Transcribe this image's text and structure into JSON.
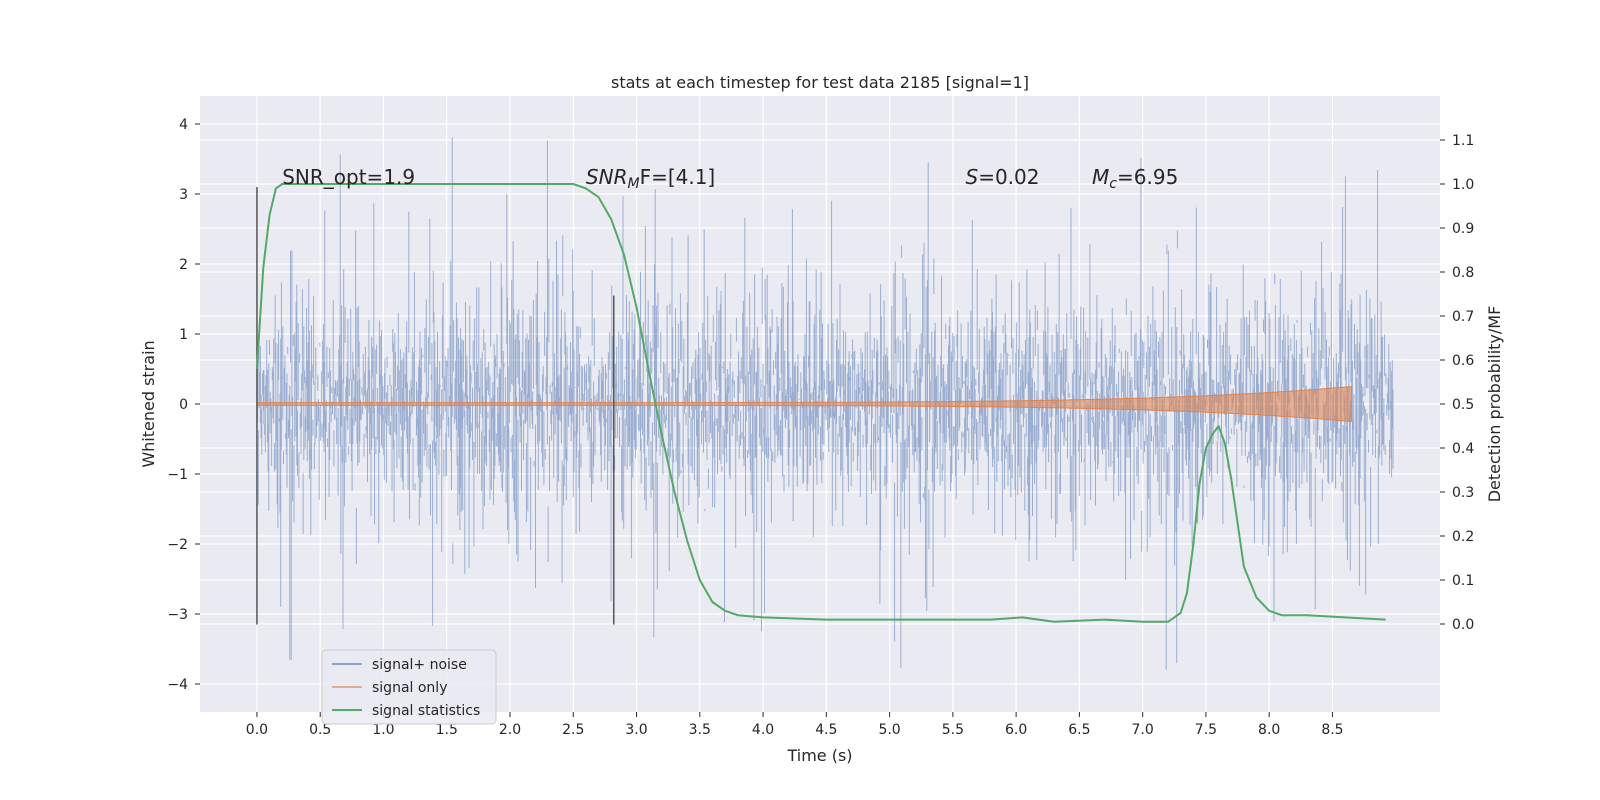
{
  "chart_data": {
    "type": "line",
    "title": "stats at each timestep for test data 2185 [signal=1]",
    "xlabel": "Time (s)",
    "ylabel_left": "Whitened strain",
    "ylabel_right": "Detection probability/MF",
    "xlim": [
      -0.45,
      9.35
    ],
    "ylim_left": [
      -4.4,
      4.4
    ],
    "ylim_right": [
      -0.2,
      1.2
    ],
    "x_ticks": [
      "0.0",
      "0.5",
      "1.0",
      "1.5",
      "2.0",
      "2.5",
      "3.0",
      "3.5",
      "4.0",
      "4.5",
      "5.0",
      "5.5",
      "6.0",
      "6.5",
      "7.0",
      "7.5",
      "8.0",
      "8.5"
    ],
    "y_left_ticks": [
      "4",
      "3",
      "2",
      "1",
      "0",
      "−1",
      "−2",
      "−3",
      "−4"
    ],
    "y_right_ticks": [
      "1.1",
      "1.0",
      "0.9",
      "0.8",
      "0.7",
      "0.6",
      "0.5",
      "0.4",
      "0.3",
      "0.2",
      "0.1",
      "0.0"
    ],
    "grid": true,
    "legend_position": "lower-left",
    "annotations": [
      {
        "text": "SNR_opt=1.9",
        "x": 0.2
      },
      {
        "text_parts": [
          "SNR",
          "M",
          "F=[4.1]"
        ],
        "x": 2.6
      },
      {
        "text_parts": [
          "S",
          "=0.02"
        ],
        "x": 5.6
      },
      {
        "text_parts": [
          "M",
          "c",
          "=6.95"
        ],
        "x": 6.6
      }
    ],
    "vlines": [
      {
        "x": 0.0,
        "y_range": [
          -3.15,
          3.1
        ]
      },
      {
        "x": 2.82,
        "y_range": [
          -3.15,
          1.55
        ]
      }
    ],
    "series": [
      {
        "name": "signal+ noise",
        "color": "#4c72b0",
        "x_range": [
          0.0,
          8.98
        ],
        "amplitude_envelope": {
          "typical_abs": 2.0,
          "max": 3.97,
          "min": -4.02
        }
      },
      {
        "name": "signal only",
        "color": "#dd8452",
        "x_range": [
          0.0,
          8.65
        ],
        "amplitude_envelope": {
          "start": 0.02,
          "end": 0.25
        }
      },
      {
        "name": "signal statistics",
        "color": "#55a868",
        "axis": "right",
        "x": [
          0.0,
          0.05,
          0.1,
          0.15,
          0.2,
          0.3,
          0.5,
          1.0,
          1.5,
          2.0,
          2.3,
          2.5,
          2.6,
          2.7,
          2.8,
          2.9,
          3.0,
          3.1,
          3.2,
          3.3,
          3.4,
          3.5,
          3.6,
          3.7,
          3.8,
          4.0,
          4.5,
          5.0,
          5.5,
          5.8,
          6.05,
          6.3,
          6.7,
          7.0,
          7.2,
          7.3,
          7.35,
          7.4,
          7.45,
          7.5,
          7.55,
          7.6,
          7.65,
          7.7,
          7.8,
          7.9,
          8.0,
          8.1,
          8.3,
          8.6,
          8.92
        ],
        "values": [
          0.58,
          0.81,
          0.93,
          0.99,
          1.0,
          1.0,
          1.0,
          1.0,
          1.0,
          1.0,
          1.0,
          1.0,
          0.99,
          0.97,
          0.92,
          0.84,
          0.72,
          0.57,
          0.43,
          0.3,
          0.19,
          0.1,
          0.05,
          0.03,
          0.02,
          0.015,
          0.01,
          0.01,
          0.01,
          0.01,
          0.015,
          0.005,
          0.01,
          0.005,
          0.005,
          0.025,
          0.07,
          0.18,
          0.32,
          0.4,
          0.43,
          0.45,
          0.41,
          0.33,
          0.13,
          0.06,
          0.03,
          0.02,
          0.02,
          0.015,
          0.01
        ]
      }
    ]
  }
}
